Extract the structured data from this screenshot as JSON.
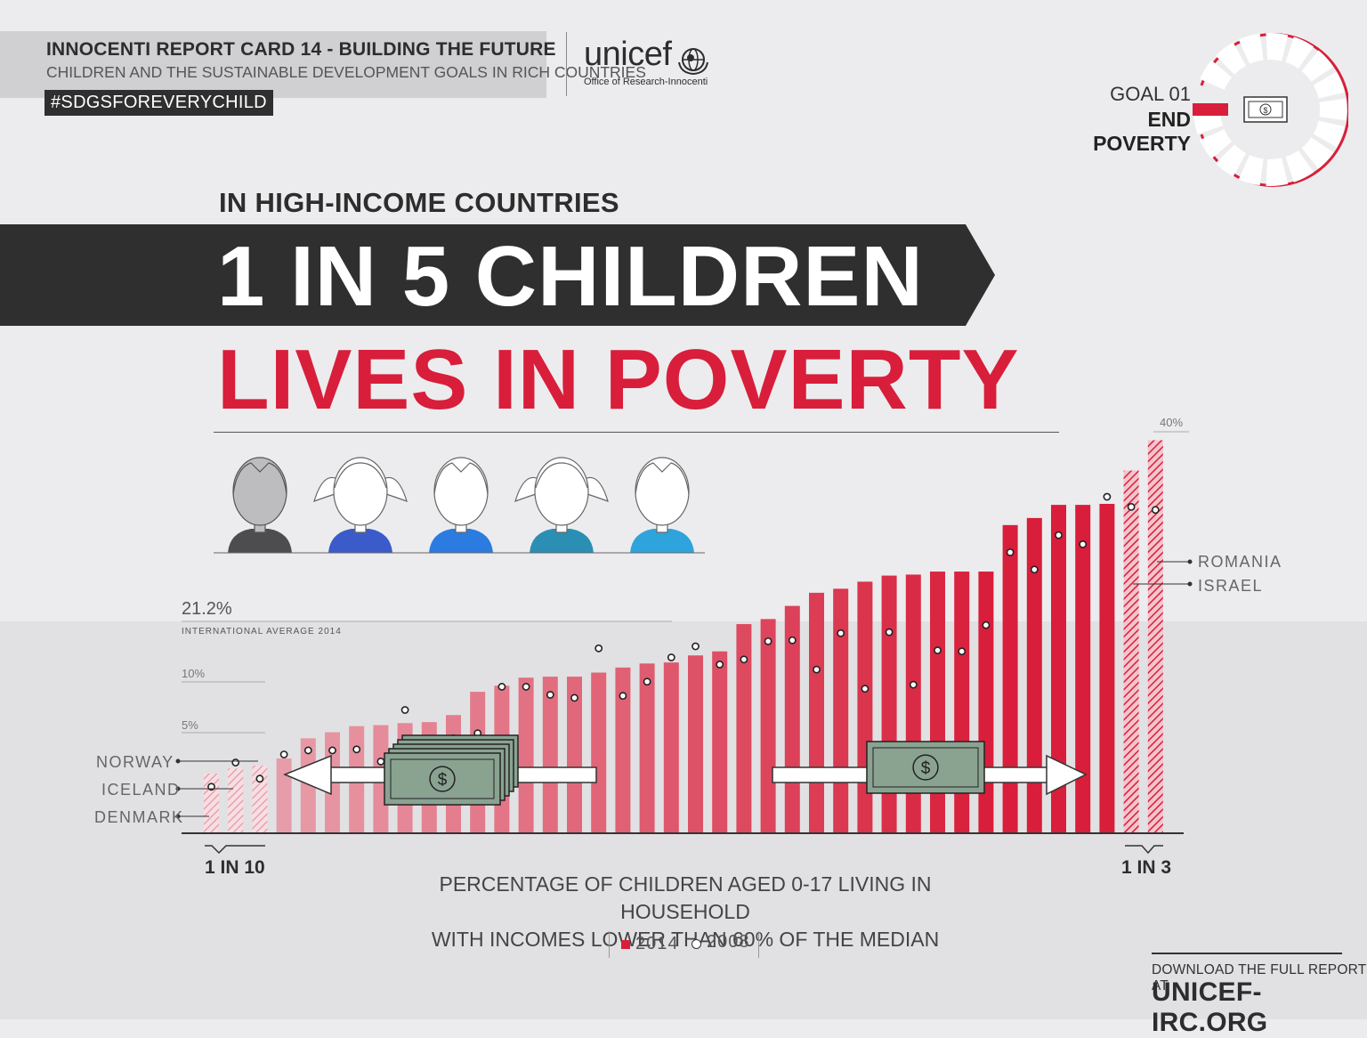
{
  "header": {
    "report_title": "INNOCENTI REPORT CARD 14 - BUILDING THE FUTURE",
    "report_subtitle": "CHILDREN AND THE SUSTAINABLE DEVELOPMENT GOALS IN RICH COUNTRIES",
    "hashtag": "#SDGSFOREVERYCHILD",
    "logo_word": "unicef",
    "logo_sub": "Office of Research-Innocenti"
  },
  "goal": {
    "number": "GOAL 01",
    "name": "END POVERTY",
    "icon": "banknote-icon",
    "accent": "#d81e3a"
  },
  "headline": {
    "kicker": "IN HIGH-INCOME COUNTRIES",
    "line1": "1 IN 5 CHILDREN",
    "line2": "LIVES IN POVERTY"
  },
  "children_icons": [
    {
      "icon": "boy-face-icon",
      "shirt": "#4d4d4f",
      "highlighted": true
    },
    {
      "icon": "girl-face-icon",
      "shirt": "#3a5bc9",
      "highlighted": false
    },
    {
      "icon": "boy-face-icon",
      "shirt": "#2b7be0",
      "highlighted": false
    },
    {
      "icon": "girl-face-icon",
      "shirt": "#2a8fb3",
      "highlighted": false
    },
    {
      "icon": "boy-face-icon",
      "shirt": "#2fa3dc",
      "highlighted": false
    }
  ],
  "chart_data": {
    "type": "bar",
    "ticks": {
      "t5": "5%",
      "t10": "10%",
      "t40": "40%"
    },
    "average": {
      "value": 21.2,
      "value_label": "21.2%",
      "label": "INTERNATIONAL AVERAGE 2014"
    },
    "values_2014": [
      5.9,
      6.4,
      6.7,
      7.4,
      9.4,
      10.0,
      10.6,
      10.7,
      10.9,
      11.0,
      11.7,
      14.0,
      14.6,
      15.4,
      15.5,
      15.5,
      15.9,
      16.4,
      16.8,
      16.9,
      17.6,
      18.0,
      20.7,
      21.2,
      22.5,
      23.8,
      24.2,
      24.9,
      25.5,
      25.6,
      25.9,
      25.9,
      25.9,
      30.5,
      31.2,
      32.5,
      32.5,
      32.6,
      35.9,
      38.9
    ],
    "values_2008": [
      4.6,
      7.0,
      5.4,
      7.8,
      8.2,
      8.2,
      8.3,
      7.1,
      12.2,
      8.0,
      9.4,
      9.9,
      14.5,
      14.5,
      13.7,
      13.4,
      18.3,
      13.6,
      15.0,
      17.4,
      18.5,
      16.7,
      17.2,
      19.0,
      19.1,
      16.2,
      19.8,
      14.3,
      19.9,
      14.7,
      18.1,
      18.0,
      20.6,
      27.8,
      26.1,
      29.5,
      28.6,
      33.3,
      32.3,
      32.0
    ],
    "hatched": [
      0,
      1,
      2,
      38,
      39
    ],
    "country_labels": {
      "norway": "NORWAY",
      "iceland": "ICELAND",
      "denmark": "DENMARK",
      "romania": "ROMANIA",
      "israel": "ISRAEL"
    },
    "low_end": "1 IN 10",
    "high_end": "1 IN 3",
    "xlabel": "PERCENTAGE OF CHILDREN AGED 0-17 LIVING IN HOUSEHOLD WITH INCOMES LOWER THAN 60% OF THE MEDIAN",
    "legend": {
      "series_2014": "2014",
      "series_2008": "2008"
    },
    "colors": {
      "low": "#e8a1ad",
      "high": "#d81e3a",
      "money": "#8aa391"
    },
    "ylim": [
      0,
      40
    ]
  },
  "footer": {
    "cta": "DOWNLOAD THE FULL REPORT AT",
    "url": "UNICEF-IRC.ORG"
  }
}
